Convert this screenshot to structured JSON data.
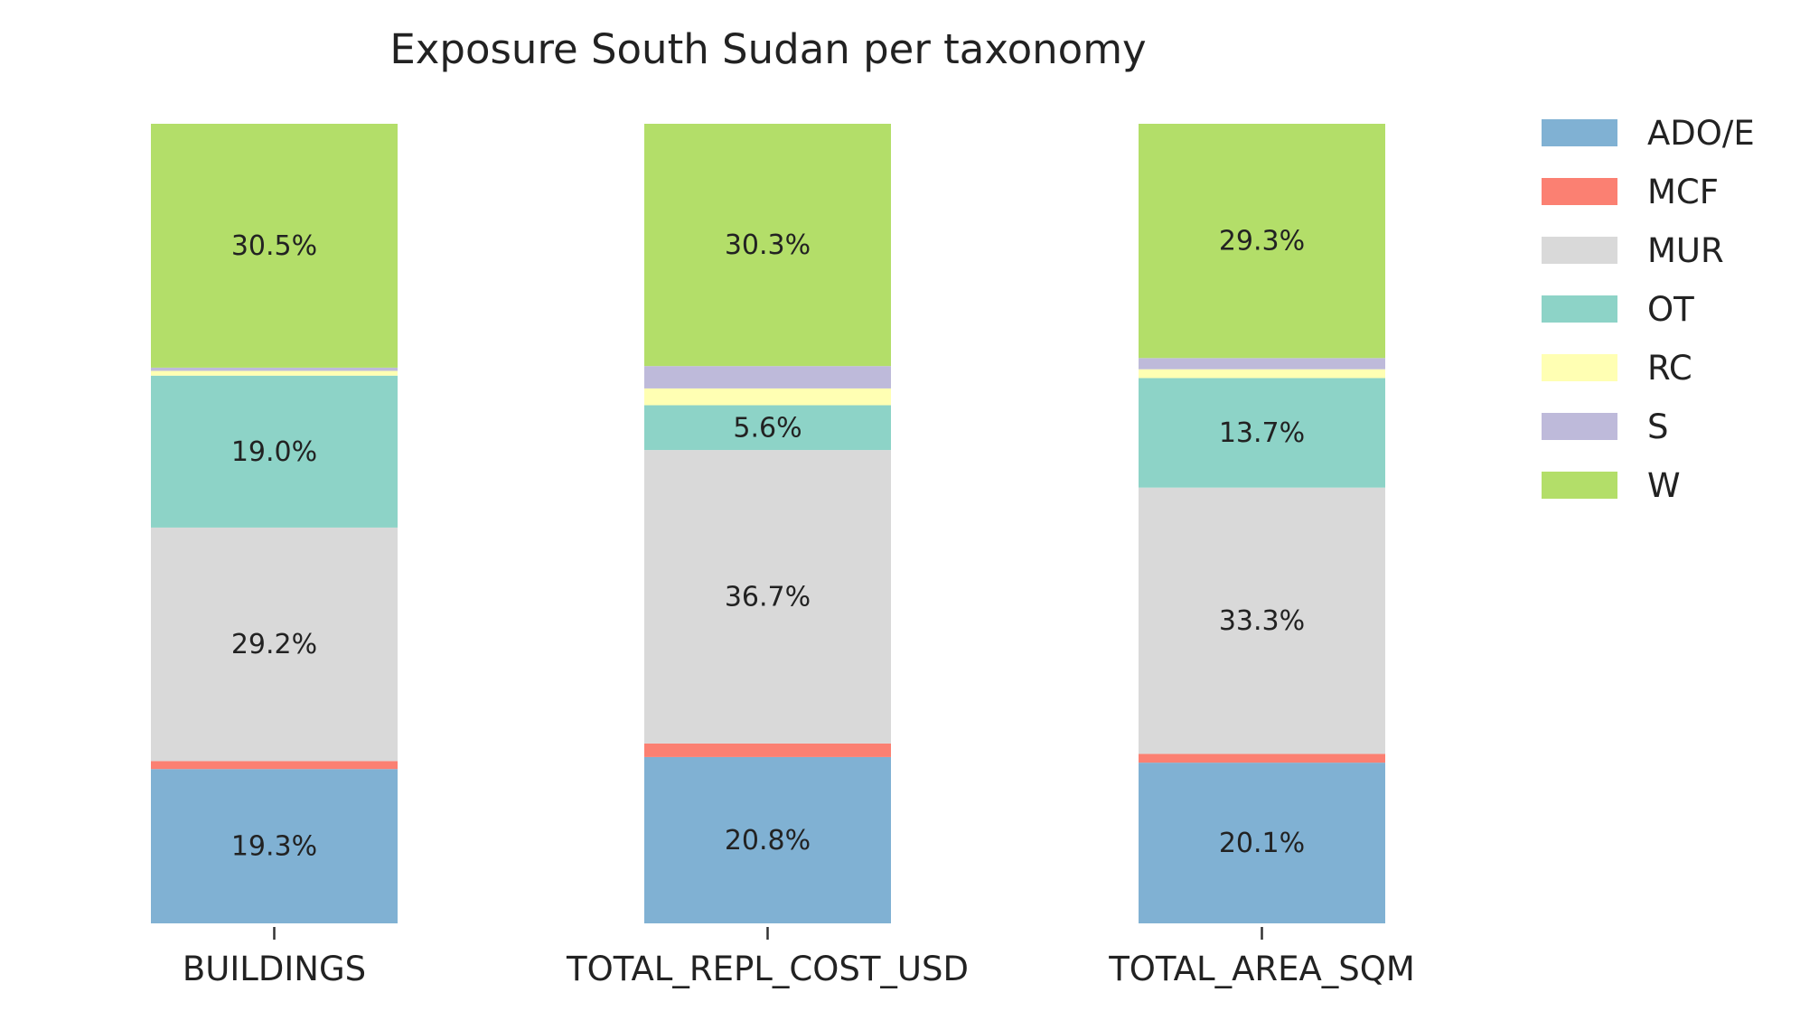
{
  "chart_data": {
    "type": "bar",
    "stacked": true,
    "orientation": "vertical",
    "title": "Exposure South Sudan per taxonomy",
    "xlabel": "",
    "ylabel": "",
    "ylim": [
      0,
      100
    ],
    "grid": false,
    "legend_position": "right",
    "categories": [
      "BUILDINGS",
      "TOTAL_REPL_COST_USD",
      "TOTAL_AREA_SQM"
    ],
    "series": [
      {
        "name": "ADO/E",
        "color": "#80b1d3",
        "values": [
          19.3,
          20.8,
          20.1
        ],
        "labels": [
          "19.3%",
          "20.8%",
          "20.1%"
        ]
      },
      {
        "name": "MCF",
        "color": "#fb8072",
        "values": [
          1.0,
          1.7,
          1.1
        ],
        "labels": [
          "",
          "",
          ""
        ]
      },
      {
        "name": "MUR",
        "color": "#d9d9d9",
        "values": [
          29.2,
          36.7,
          33.3
        ],
        "labels": [
          "29.2%",
          "36.7%",
          "33.3%"
        ]
      },
      {
        "name": "OT",
        "color": "#8dd3c7",
        "values": [
          19.0,
          5.6,
          13.7
        ],
        "labels": [
          "19.0%",
          "5.6%",
          "13.7%"
        ]
      },
      {
        "name": "RC",
        "color": "#ffffb3",
        "values": [
          0.6,
          2.1,
          1.1
        ],
        "labels": [
          "",
          "",
          ""
        ]
      },
      {
        "name": "S",
        "color": "#bebada",
        "values": [
          0.4,
          2.8,
          1.4
        ],
        "labels": [
          "",
          "",
          ""
        ]
      },
      {
        "name": "W",
        "color": "#b3de69",
        "values": [
          30.5,
          30.3,
          29.3
        ],
        "labels": [
          "30.5%",
          "30.3%",
          "29.3%"
        ]
      }
    ]
  }
}
